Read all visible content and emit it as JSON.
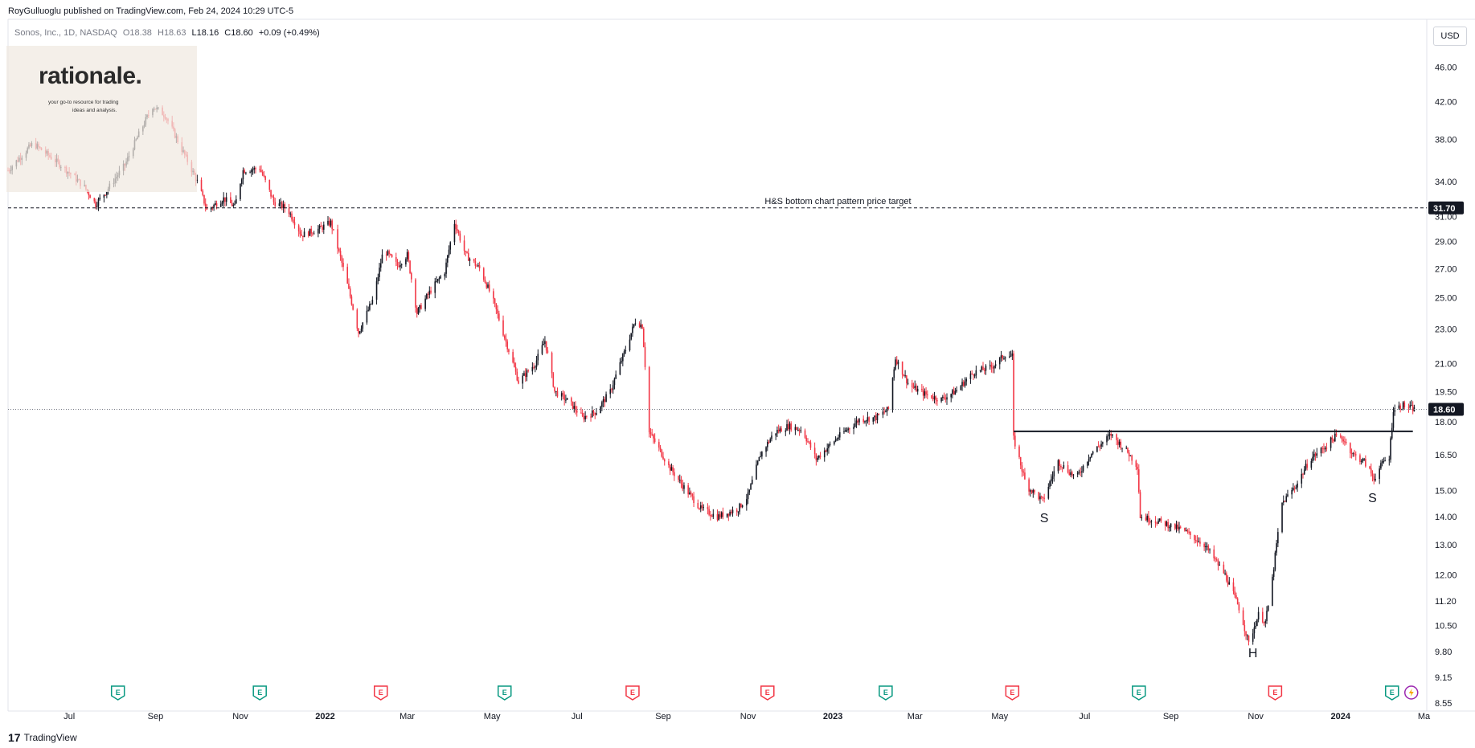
{
  "header": {
    "published": "RoyGulluoglu published on TradingView.com, Feb 24, 2024 10:29 UTC-5"
  },
  "legend": {
    "symbol": "Sonos, Inc., 1D, NASDAQ",
    "open": "O18.38",
    "high": "H18.63",
    "low": "L18.16",
    "close": "C18.60",
    "change": "+0.09 (+0.49%)"
  },
  "watermark": {
    "brand": "rationale.",
    "tagline_1": "your go-to resource for trading",
    "tagline_2": "ideas and analysis."
  },
  "toolbar": {
    "currency": "USD"
  },
  "footer": {
    "brand": "TradingView",
    "mark": "17"
  },
  "colors": {
    "up": "#131722",
    "down": "#f23645",
    "price_label": "#131722",
    "grid": "#ffffff"
  },
  "chart_data": {
    "type": "candlestick",
    "y_scale": "log",
    "ylim": [
      8.55,
      49.0
    ],
    "y_ticks": [
      "46.00",
      "42.00",
      "38.00",
      "34.00",
      "31.00",
      "29.00",
      "27.00",
      "25.00",
      "23.00",
      "21.00",
      "19.50",
      "18.00",
      "16.50",
      "15.00",
      "14.00",
      "13.00",
      "12.00",
      "11.20",
      "10.50",
      "9.80",
      "9.15",
      "8.55"
    ],
    "x_ticks": [
      {
        "label": "Jul",
        "date": "2021-07-01"
      },
      {
        "label": "Sep",
        "date": "2021-09-01"
      },
      {
        "label": "Nov",
        "date": "2021-11-01"
      },
      {
        "label": "2022",
        "date": "2022-01-01",
        "bold": true
      },
      {
        "label": "Mar",
        "date": "2022-03-01"
      },
      {
        "label": "May",
        "date": "2022-05-01"
      },
      {
        "label": "Jul",
        "date": "2022-07-01"
      },
      {
        "label": "Sep",
        "date": "2022-09-01"
      },
      {
        "label": "Nov",
        "date": "2022-11-01"
      },
      {
        "label": "2023",
        "date": "2023-01-01",
        "bold": true
      },
      {
        "label": "Mar",
        "date": "2023-03-01"
      },
      {
        "label": "May",
        "date": "2023-05-01"
      },
      {
        "label": "Jul",
        "date": "2023-07-01"
      },
      {
        "label": "Sep",
        "date": "2023-09-01"
      },
      {
        "label": "Nov",
        "date": "2023-11-01"
      },
      {
        "label": "2024",
        "date": "2024-01-01",
        "bold": true
      },
      {
        "label": "Ma",
        "date": "2024-03-01"
      }
    ],
    "date_range": [
      "2021-05-18",
      "2024-03-03"
    ],
    "price_path": [
      [
        "2021-05-18",
        35.0
      ],
      [
        "2021-06-05",
        37.6
      ],
      [
        "2021-06-25",
        35.5
      ],
      [
        "2021-07-12",
        33.5
      ],
      [
        "2021-07-20",
        32.0
      ],
      [
        "2021-07-28",
        33.2
      ],
      [
        "2021-08-10",
        35.5
      ],
      [
        "2021-08-20",
        38.5
      ],
      [
        "2021-08-30",
        41.5
      ],
      [
        "2021-09-08",
        40.5
      ],
      [
        "2021-09-20",
        37.0
      ],
      [
        "2021-10-01",
        34.0
      ],
      [
        "2021-10-08",
        31.5
      ],
      [
        "2021-10-20",
        32.5
      ],
      [
        "2021-10-28",
        31.8
      ],
      [
        "2021-11-03",
        35.0
      ],
      [
        "2021-11-15",
        35.2
      ],
      [
        "2021-11-25",
        32.2
      ],
      [
        "2021-12-05",
        31.6
      ],
      [
        "2021-12-15",
        29.5
      ],
      [
        "2021-12-28",
        30.0
      ],
      [
        "2022-01-05",
        30.5
      ],
      [
        "2022-01-14",
        27.0
      ],
      [
        "2022-01-25",
        22.8
      ],
      [
        "2022-02-05",
        25.0
      ],
      [
        "2022-02-12",
        28.4
      ],
      [
        "2022-02-22",
        27.2
      ],
      [
        "2022-03-01",
        28.0
      ],
      [
        "2022-03-08",
        24.0
      ],
      [
        "2022-03-18",
        25.5
      ],
      [
        "2022-03-28",
        26.8
      ],
      [
        "2022-04-04",
        30.5
      ],
      [
        "2022-04-12",
        28.0
      ],
      [
        "2022-04-22",
        27.0
      ],
      [
        "2022-05-01",
        25.0
      ],
      [
        "2022-05-10",
        22.5
      ],
      [
        "2022-05-20",
        20.0
      ],
      [
        "2022-06-01",
        21.0
      ],
      [
        "2022-06-08",
        22.3
      ],
      [
        "2022-06-15",
        19.5
      ],
      [
        "2022-06-25",
        19.0
      ],
      [
        "2022-07-05",
        18.2
      ],
      [
        "2022-07-15",
        18.5
      ],
      [
        "2022-07-25",
        19.5
      ],
      [
        "2022-08-05",
        21.8
      ],
      [
        "2022-08-12",
        23.5
      ],
      [
        "2022-08-17",
        23.2
      ],
      [
        "2022-08-22",
        17.5
      ],
      [
        "2022-09-05",
        16.0
      ],
      [
        "2022-09-15",
        15.2
      ],
      [
        "2022-09-28",
        14.3
      ],
      [
        "2022-10-10",
        14.0
      ],
      [
        "2022-10-25",
        14.3
      ],
      [
        "2022-11-01",
        14.8
      ],
      [
        "2022-11-10",
        16.5
      ],
      [
        "2022-11-20",
        17.5
      ],
      [
        "2022-11-30",
        17.8
      ],
      [
        "2022-12-10",
        17.6
      ],
      [
        "2022-12-20",
        16.3
      ],
      [
        "2023-01-05",
        17.3
      ],
      [
        "2023-01-20",
        18.1
      ],
      [
        "2023-02-01",
        18.2
      ],
      [
        "2023-02-10",
        18.6
      ],
      [
        "2023-02-15",
        21.3
      ],
      [
        "2023-02-25",
        19.8
      ],
      [
        "2023-03-10",
        19.3
      ],
      [
        "2023-03-20",
        19.1
      ],
      [
        "2023-03-30",
        19.5
      ],
      [
        "2023-04-12",
        20.5
      ],
      [
        "2023-04-25",
        20.8
      ],
      [
        "2023-05-05",
        21.5
      ],
      [
        "2023-05-10",
        21.4
      ],
      [
        "2023-05-11",
        17.2
      ],
      [
        "2023-05-20",
        15.2
      ],
      [
        "2023-06-01",
        14.6
      ],
      [
        "2023-06-12",
        16.2
      ],
      [
        "2023-06-25",
        15.5
      ],
      [
        "2023-07-05",
        16.5
      ],
      [
        "2023-07-20",
        17.4
      ],
      [
        "2023-08-01",
        16.6
      ],
      [
        "2023-08-08",
        16.0
      ],
      [
        "2023-08-10",
        14.0
      ],
      [
        "2023-08-25",
        13.8
      ],
      [
        "2023-09-10",
        13.5
      ],
      [
        "2023-09-25",
        13.0
      ],
      [
        "2023-10-10",
        12.0
      ],
      [
        "2023-10-20",
        11.0
      ],
      [
        "2023-10-27",
        10.0
      ],
      [
        "2023-11-03",
        10.8
      ],
      [
        "2023-11-08",
        10.6
      ],
      [
        "2023-11-12",
        11.5
      ],
      [
        "2023-11-20",
        14.5
      ],
      [
        "2023-12-01",
        15.3
      ],
      [
        "2023-12-10",
        16.3
      ],
      [
        "2023-12-20",
        16.8
      ],
      [
        "2023-12-28",
        17.3
      ],
      [
        "2024-01-03",
        17.2
      ],
      [
        "2024-01-10",
        16.5
      ],
      [
        "2024-01-18",
        16.2
      ],
      [
        "2024-01-25",
        15.5
      ],
      [
        "2024-02-01",
        16.2
      ],
      [
        "2024-02-05",
        16.4
      ],
      [
        "2024-02-08",
        18.6
      ],
      [
        "2024-02-15",
        18.8
      ],
      [
        "2024-02-23",
        18.6
      ]
    ],
    "horizontal_lines": [
      {
        "price": 31.7,
        "style": "dashed",
        "label": "H&S bottom chart pattern price target",
        "axis_label": "31.70",
        "from": "2021-05-18",
        "to": "2024-03-03"
      },
      {
        "price": 18.6,
        "style": "dotted",
        "axis_label": "18.60",
        "from": "2021-05-18",
        "to": "2024-03-03"
      },
      {
        "price": 17.55,
        "style": "solid",
        "from": "2023-05-11",
        "to": "2024-02-22"
      }
    ],
    "annotations": [
      {
        "text": "S",
        "date": "2023-06-02",
        "price": 13.95
      },
      {
        "text": "H",
        "date": "2023-10-30",
        "price": 9.75
      },
      {
        "text": "S",
        "date": "2024-01-24",
        "price": 14.7
      }
    ],
    "events": [
      {
        "date": "2021-08-05",
        "type": "earnings",
        "color": "green"
      },
      {
        "date": "2021-11-15",
        "type": "earnings",
        "color": "green"
      },
      {
        "date": "2022-02-10",
        "type": "earnings",
        "color": "red"
      },
      {
        "date": "2022-05-10",
        "type": "earnings",
        "color": "green"
      },
      {
        "date": "2022-08-10",
        "type": "earnings",
        "color": "red"
      },
      {
        "date": "2022-11-15",
        "type": "earnings",
        "color": "red"
      },
      {
        "date": "2023-02-08",
        "type": "earnings",
        "color": "green"
      },
      {
        "date": "2023-05-10",
        "type": "earnings",
        "color": "red"
      },
      {
        "date": "2023-08-09",
        "type": "earnings",
        "color": "green"
      },
      {
        "date": "2023-11-15",
        "type": "earnings",
        "color": "red"
      },
      {
        "date": "2024-02-07",
        "type": "earnings",
        "color": "green"
      }
    ],
    "last_price": 18.6
  }
}
